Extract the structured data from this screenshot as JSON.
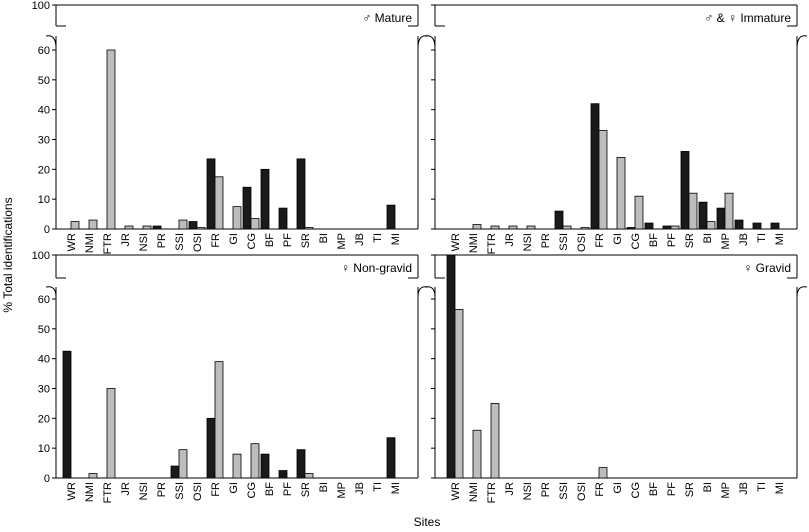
{
  "chart_data": {
    "type": "bar",
    "xlabel": "Sites",
    "ylabel": "% Total identifications",
    "ylim": [
      0,
      60
    ],
    "y_break": {
      "upper_tick": 100
    },
    "yticks": [
      0,
      10,
      20,
      30,
      40,
      50,
      60
    ],
    "categories": [
      "WR",
      "NMI",
      "FTR",
      "JR",
      "NSI",
      "PR",
      "SSI",
      "OSI",
      "FR",
      "GI",
      "CG",
      "BF",
      "PF",
      "SR",
      "BI",
      "MP",
      "JB",
      "TI",
      "MI"
    ],
    "colors": {
      "dark": "#1a1a1a",
      "light": "#bdbdbd"
    },
    "panels": [
      {
        "title": "♂ Mature",
        "series": [
          {
            "color": "dark",
            "values": [
              0,
              0,
              0,
              0,
              0,
              1,
              0,
              2.5,
              23.5,
              0,
              14,
              20,
              7,
              23.5,
              0,
              0,
              0,
              0,
              8
            ]
          },
          {
            "color": "light",
            "values": [
              2.5,
              3,
              60,
              1,
              1,
              0,
              3,
              0.5,
              17.5,
              7.5,
              3.5,
              0,
              0,
              0.5,
              0,
              0,
              0,
              0,
              0
            ]
          }
        ]
      },
      {
        "title": "♂ & ♀ Immature",
        "series": [
          {
            "color": "dark",
            "values": [
              0,
              0,
              0,
              0,
              0,
              0,
              6,
              0,
              42,
              0,
              0.5,
              2,
              1,
              26,
              9,
              7,
              3,
              2,
              2
            ]
          },
          {
            "color": "light",
            "values": [
              0,
              1.5,
              1,
              1,
              1,
              0,
              1,
              0.5,
              33,
              24,
              11,
              0,
              1,
              12,
              2.5,
              12,
              0,
              0,
              0
            ]
          }
        ]
      },
      {
        "title": "♀ Non-gravid",
        "series": [
          {
            "color": "dark",
            "values": [
              42.5,
              0,
              0,
              0,
              0,
              0,
              4,
              0,
              20,
              0,
              0,
              8,
              2.5,
              9.5,
              0,
              0,
              0,
              0,
              13.5
            ]
          },
          {
            "color": "light",
            "values": [
              0,
              1.5,
              30,
              0,
              0,
              0,
              9.5,
              0,
              39,
              8,
              11.5,
              0,
              0,
              1.5,
              0,
              0,
              0,
              0,
              0
            ]
          }
        ]
      },
      {
        "title": "♀ Gravid",
        "series": [
          {
            "color": "dark",
            "values": [
              100,
              0,
              0,
              0,
              0,
              0,
              0,
              0,
              0,
              0,
              0,
              0,
              0,
              0,
              0,
              0,
              0,
              0,
              0
            ]
          },
          {
            "color": "light",
            "values": [
              56.5,
              16,
              25,
              0,
              0,
              0,
              0,
              0,
              3.5,
              0,
              0,
              0,
              0,
              0,
              0,
              0,
              0,
              0,
              0
            ]
          }
        ]
      }
    ]
  }
}
